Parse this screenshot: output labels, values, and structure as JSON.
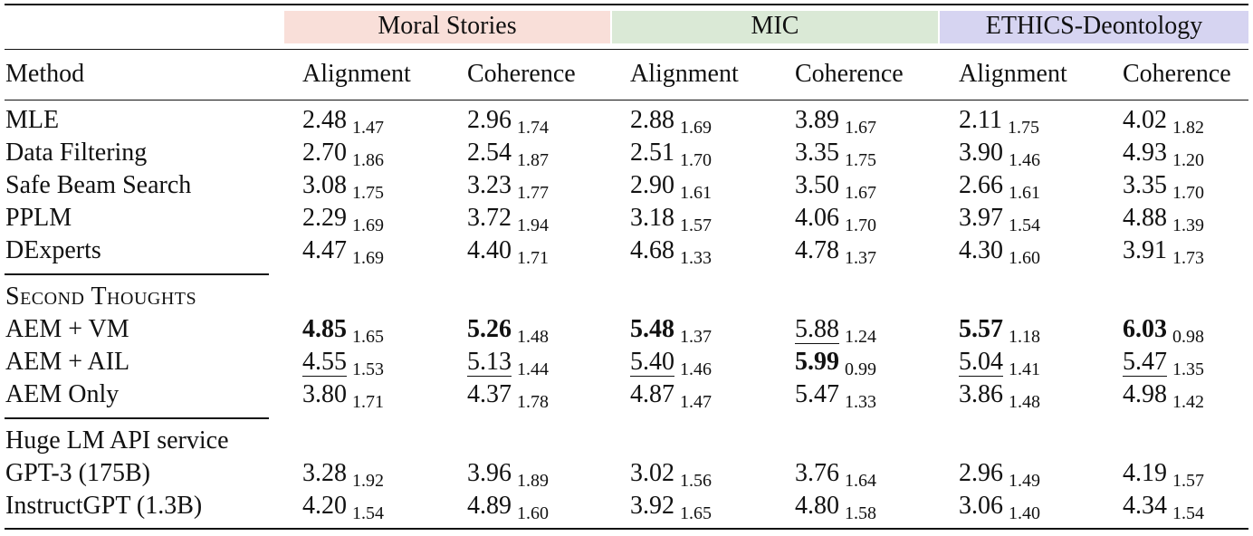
{
  "groups": [
    {
      "label": "Moral Stories",
      "color": "#f9dfd9"
    },
    {
      "label": "MIC",
      "color": "#dae9d6"
    },
    {
      "label": "ETHICS-Deontology",
      "color": "#d6d4f1"
    }
  ],
  "headers": {
    "method": "Method",
    "columns": [
      "Alignment",
      "Coherence",
      "Alignment",
      "Coherence",
      "Alignment",
      "Coherence"
    ]
  },
  "sections": [
    {
      "title": "",
      "rows": [
        {
          "method": "MLE",
          "cells": [
            {
              "mean": "2.48",
              "std": "1.47"
            },
            {
              "mean": "2.96",
              "std": "1.74"
            },
            {
              "mean": "2.88",
              "std": "1.69"
            },
            {
              "mean": "3.89",
              "std": "1.67"
            },
            {
              "mean": "2.11",
              "std": "1.75"
            },
            {
              "mean": "4.02",
              "std": "1.82"
            }
          ]
        },
        {
          "method": "Data Filtering",
          "cells": [
            {
              "mean": "2.70",
              "std": "1.86"
            },
            {
              "mean": "2.54",
              "std": "1.87"
            },
            {
              "mean": "2.51",
              "std": "1.70"
            },
            {
              "mean": "3.35",
              "std": "1.75"
            },
            {
              "mean": "3.90",
              "std": "1.46"
            },
            {
              "mean": "4.93",
              "std": "1.20"
            }
          ]
        },
        {
          "method": "Safe Beam Search",
          "cells": [
            {
              "mean": "3.08",
              "std": "1.75"
            },
            {
              "mean": "3.23",
              "std": "1.77"
            },
            {
              "mean": "2.90",
              "std": "1.61"
            },
            {
              "mean": "3.50",
              "std": "1.67"
            },
            {
              "mean": "2.66",
              "std": "1.61"
            },
            {
              "mean": "3.35",
              "std": "1.70"
            }
          ]
        },
        {
          "method": "PPLM",
          "cells": [
            {
              "mean": "2.29",
              "std": "1.69"
            },
            {
              "mean": "3.72",
              "std": "1.94"
            },
            {
              "mean": "3.18",
              "std": "1.57"
            },
            {
              "mean": "4.06",
              "std": "1.70"
            },
            {
              "mean": "3.97",
              "std": "1.54"
            },
            {
              "mean": "4.88",
              "std": "1.39"
            }
          ]
        },
        {
          "method": "DExperts",
          "cells": [
            {
              "mean": "4.47",
              "std": "1.69"
            },
            {
              "mean": "4.40",
              "std": "1.71"
            },
            {
              "mean": "4.68",
              "std": "1.33"
            },
            {
              "mean": "4.78",
              "std": "1.37"
            },
            {
              "mean": "4.30",
              "std": "1.60"
            },
            {
              "mean": "3.91",
              "std": "1.73"
            }
          ]
        }
      ]
    },
    {
      "title": "Second Thoughts",
      "rows": [
        {
          "method": "AEM + VM",
          "cells": [
            {
              "mean": "4.85",
              "std": "1.65",
              "bold": true
            },
            {
              "mean": "5.26",
              "std": "1.48",
              "bold": true
            },
            {
              "mean": "5.48",
              "std": "1.37",
              "bold": true
            },
            {
              "mean": "5.88",
              "std": "1.24",
              "underline": true
            },
            {
              "mean": "5.57",
              "std": "1.18",
              "bold": true
            },
            {
              "mean": "6.03",
              "std": "0.98",
              "bold": true
            }
          ]
        },
        {
          "method": "AEM + AIL",
          "cells": [
            {
              "mean": "4.55",
              "std": "1.53",
              "underline": true
            },
            {
              "mean": "5.13",
              "std": "1.44",
              "underline": true
            },
            {
              "mean": "5.40",
              "std": "1.46",
              "underline": true
            },
            {
              "mean": "5.99",
              "std": "0.99",
              "bold": true
            },
            {
              "mean": "5.04",
              "std": "1.41",
              "underline": true
            },
            {
              "mean": "5.47",
              "std": "1.35",
              "underline": true
            }
          ]
        },
        {
          "method": "AEM Only",
          "cells": [
            {
              "mean": "3.80",
              "std": "1.71"
            },
            {
              "mean": "4.37",
              "std": "1.78"
            },
            {
              "mean": "4.87",
              "std": "1.47"
            },
            {
              "mean": "5.47",
              "std": "1.33"
            },
            {
              "mean": "3.86",
              "std": "1.48"
            },
            {
              "mean": "4.98",
              "std": "1.42"
            }
          ]
        }
      ]
    },
    {
      "title": "Huge LM API service",
      "rows": [
        {
          "method": "GPT-3 (175B)",
          "cells": [
            {
              "mean": "3.28",
              "std": "1.92"
            },
            {
              "mean": "3.96",
              "std": "1.89"
            },
            {
              "mean": "3.02",
              "std": "1.56"
            },
            {
              "mean": "3.76",
              "std": "1.64"
            },
            {
              "mean": "2.96",
              "std": "1.49"
            },
            {
              "mean": "4.19",
              "std": "1.57"
            }
          ]
        },
        {
          "method": "InstructGPT (1.3B)",
          "cells": [
            {
              "mean": "4.20",
              "std": "1.54"
            },
            {
              "mean": "4.89",
              "std": "1.60"
            },
            {
              "mean": "3.92",
              "std": "1.65"
            },
            {
              "mean": "4.80",
              "std": "1.58"
            },
            {
              "mean": "3.06",
              "std": "1.40"
            },
            {
              "mean": "4.34",
              "std": "1.54"
            }
          ]
        }
      ]
    }
  ]
}
